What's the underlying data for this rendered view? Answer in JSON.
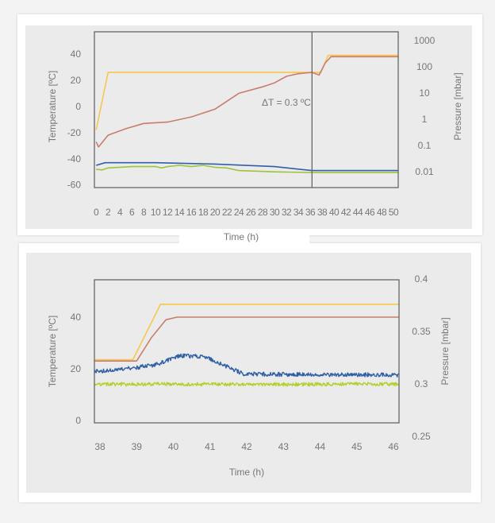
{
  "chart_data": [
    {
      "type": "line",
      "xlabel": "Time (h)",
      "ylabel": "Temperature [ºC]",
      "y2label": "Pressure [mbar]",
      "xlim": [
        -0.3,
        50.8
      ],
      "ylim": [
        -62,
        57
      ],
      "x_ticks": [
        0,
        2,
        4,
        6,
        8,
        10,
        12,
        14,
        16,
        18,
        20,
        22,
        24,
        26,
        28,
        30,
        32,
        34,
        36,
        38,
        40,
        42,
        44,
        46,
        48,
        50
      ],
      "y_ticks": [
        40,
        20,
        0,
        -20,
        -40,
        -60
      ],
      "y2_ticks": [
        "1000",
        "100",
        "10",
        "1",
        "0.1",
        "0.01"
      ],
      "y2_scale": "log",
      "grid": false,
      "vline_x": 36.3,
      "annotation": "ΔT = 0.3 ºC",
      "series": [
        {
          "color": "#f5c84a",
          "points": [
            [
              0,
              -18
            ],
            [
              2,
              26
            ],
            [
              36.3,
              26
            ],
            [
              37.8,
              26
            ],
            [
              39,
              39
            ],
            [
              50.8,
              39
            ]
          ]
        },
        {
          "color": "#c97d6e",
          "points": [
            [
              0,
              -27
            ],
            [
              0.4,
              -31
            ],
            [
              2,
              -22
            ],
            [
              5,
              -17
            ],
            [
              8,
              -13
            ],
            [
              12,
              -12
            ],
            [
              16,
              -8
            ],
            [
              20,
              -2
            ],
            [
              22,
              4
            ],
            [
              24,
              10
            ],
            [
              28,
              15
            ],
            [
              30,
              18
            ],
            [
              32,
              23
            ],
            [
              34,
              25
            ],
            [
              36.3,
              26
            ],
            [
              37.5,
              24
            ],
            [
              38.5,
              33
            ],
            [
              39.5,
              38
            ],
            [
              50.8,
              38
            ]
          ]
        },
        {
          "color": "#2f5fa8",
          "points": [
            [
              0,
              -45
            ],
            [
              1.5,
              -43
            ],
            [
              10,
              -43
            ],
            [
              20,
              -44
            ],
            [
              30,
              -46
            ],
            [
              36.3,
              -49
            ],
            [
              50.8,
              -49
            ]
          ]
        },
        {
          "color": "#9cc43c",
          "points": [
            [
              0,
              -48
            ],
            [
              1,
              -48.5
            ],
            [
              2,
              -47
            ],
            [
              6,
              -46
            ],
            [
              10,
              -46
            ],
            [
              11,
              -47
            ],
            [
              12,
              -46
            ],
            [
              14,
              -45
            ],
            [
              16,
              -46
            ],
            [
              18,
              -45
            ],
            [
              20,
              -46.5
            ],
            [
              22,
              -47
            ],
            [
              24,
              -49
            ],
            [
              30,
              -50
            ],
            [
              36.3,
              -50.5
            ],
            [
              50.8,
              -50.5
            ]
          ]
        }
      ]
    },
    {
      "type": "line",
      "xlabel": "Time (h)",
      "ylabel": "Temperature [ºC]",
      "y2label": "Pressure [mbar]",
      "xlim": [
        37.85,
        46.15
      ],
      "ylim": [
        -1,
        54.5
      ],
      "x_ticks": [
        38,
        39,
        40,
        41,
        42,
        43,
        44,
        45,
        46
      ],
      "y_ticks": [
        40,
        20,
        0
      ],
      "y2_ticks": [
        "0.4",
        "0.35",
        "0.3",
        "0.25"
      ],
      "grid": false,
      "series": [
        {
          "color": "#f5c84a",
          "noise": 0,
          "points": [
            [
              37.85,
              23.5
            ],
            [
              38.9,
              23.5
            ],
            [
              39.65,
              45
            ],
            [
              46.15,
              45
            ]
          ]
        },
        {
          "color": "#c97d6e",
          "noise": 0,
          "points": [
            [
              37.85,
              23
            ],
            [
              39,
              23
            ],
            [
              39.4,
              32
            ],
            [
              39.8,
              39
            ],
            [
              40.1,
              40
            ],
            [
              46.15,
              40
            ]
          ]
        },
        {
          "color": "#2f5fa8",
          "noise": 0.8,
          "points": [
            [
              37.85,
              19
            ],
            [
              38.5,
              19.5
            ],
            [
              39,
              20.5
            ],
            [
              39.5,
              21.5
            ],
            [
              39.9,
              23.5
            ],
            [
              40.2,
              25
            ],
            [
              40.8,
              24.8
            ],
            [
              41.2,
              22.5
            ],
            [
              41.6,
              20
            ],
            [
              41.9,
              18
            ],
            [
              43,
              17.8
            ],
            [
              46.15,
              17.6
            ]
          ]
        },
        {
          "color": "#b5cf2a",
          "noise": 0.7,
          "points": [
            [
              37.85,
              14
            ],
            [
              46.15,
              14
            ]
          ]
        }
      ]
    }
  ]
}
